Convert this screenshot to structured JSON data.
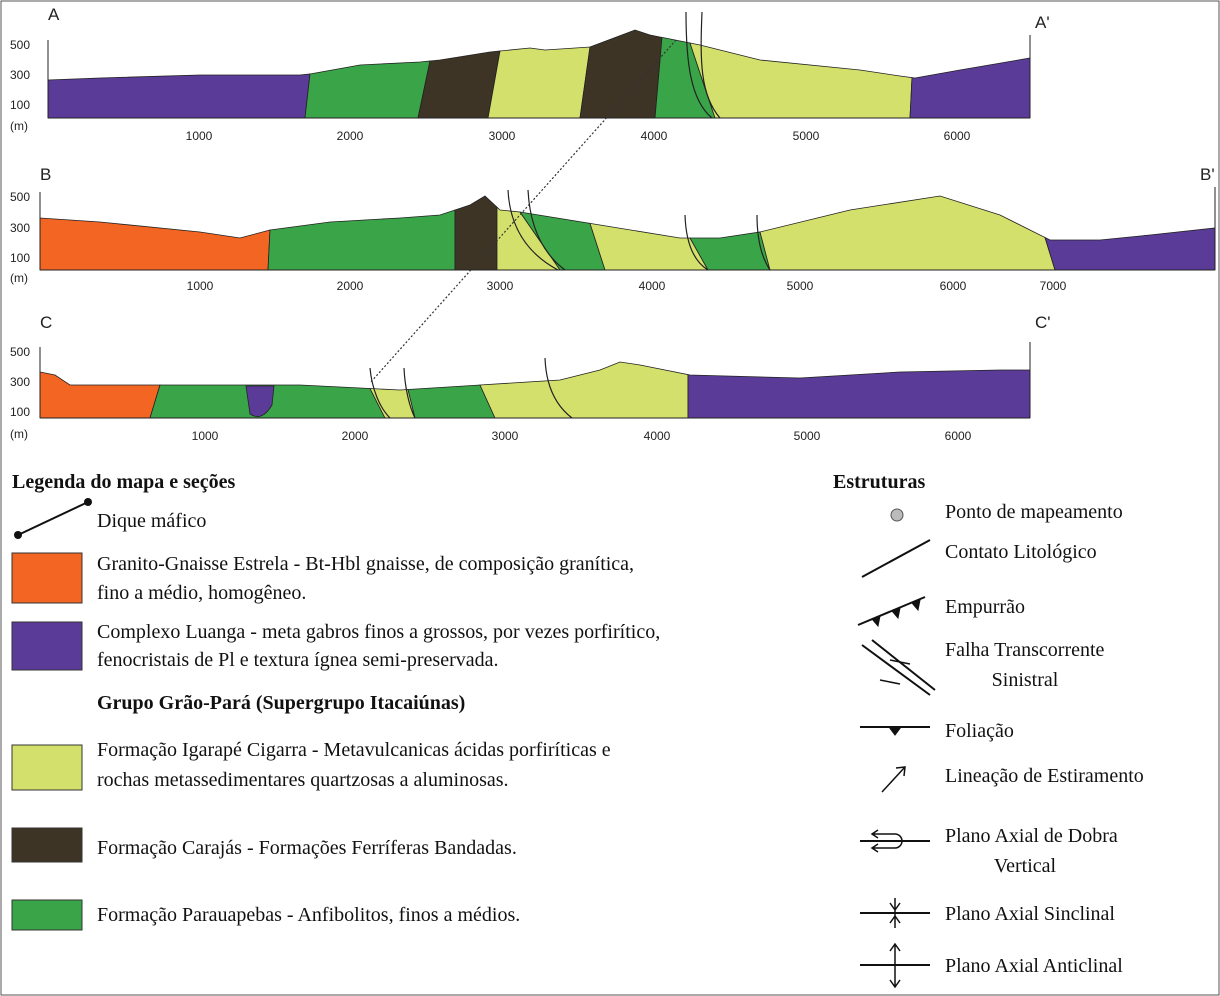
{
  "sections": [
    {
      "start": "A",
      "end": "A'",
      "y_labels": [
        "500",
        "300",
        "100"
      ],
      "unit": "(m)",
      "x_labels": [
        "1000",
        "2000",
        "3000",
        "4000",
        "5000",
        "6000"
      ]
    },
    {
      "start": "B",
      "end": "B'",
      "y_labels": [
        "500",
        "300",
        "100"
      ],
      "unit": "(m)",
      "x_labels": [
        "1000",
        "2000",
        "3000",
        "4000",
        "5000",
        "6000",
        "7000"
      ]
    },
    {
      "start": "C",
      "end": "C'",
      "y_labels": [
        "500",
        "300",
        "100"
      ],
      "unit": "(m)",
      "x_labels": [
        "1000",
        "2000",
        "3000",
        "4000",
        "5000",
        "6000"
      ]
    }
  ],
  "legend": {
    "title": "Legenda do mapa e seções",
    "dike": "Dique máfico",
    "group_title": "Grupo Grão-Pará (Supergrupo Itacaiúnas)",
    "items": [
      {
        "lines": [
          "Granito-Gnaisse Estrela - Bt-Hbl gnaisse, de composição granítica,",
          "fino a médio, homogêneo."
        ]
      },
      {
        "lines": [
          "Complexo Luanga - meta gabros finos a grossos, por vezes porfirítico,",
          "fenocristais de Pl e textura ígnea semi-preservada."
        ]
      },
      {
        "lines": [
          "Formação Igarapé Cigarra - Metavulcanicas ácidas porfiríticas e",
          "rochas metassedimentares quartzosas a aluminosas."
        ]
      },
      {
        "lines": [
          "Formação Carajás - Formações Ferríferas Bandadas."
        ]
      },
      {
        "lines": [
          "Formação Parauapebas - Anfibolitos, finos a médios."
        ]
      }
    ]
  },
  "structures": {
    "title": "Estruturas",
    "items": [
      {
        "lines": [
          "Ponto de mapeamento"
        ]
      },
      {
        "lines": [
          "Contato Litológico"
        ]
      },
      {
        "lines": [
          "Empurrão"
        ]
      },
      {
        "lines": [
          "Falha Transcorrente",
          "Sinistral"
        ]
      },
      {
        "lines": [
          "Foliação"
        ]
      },
      {
        "lines": [
          "Lineação de Estiramento"
        ]
      },
      {
        "lines": [
          "Plano Axial de Dobra",
          "Vertical"
        ]
      },
      {
        "lines": [
          "Plano Axial Sinclinal"
        ]
      },
      {
        "lines": [
          "Plano Axial Anticlinal"
        ]
      }
    ]
  }
}
